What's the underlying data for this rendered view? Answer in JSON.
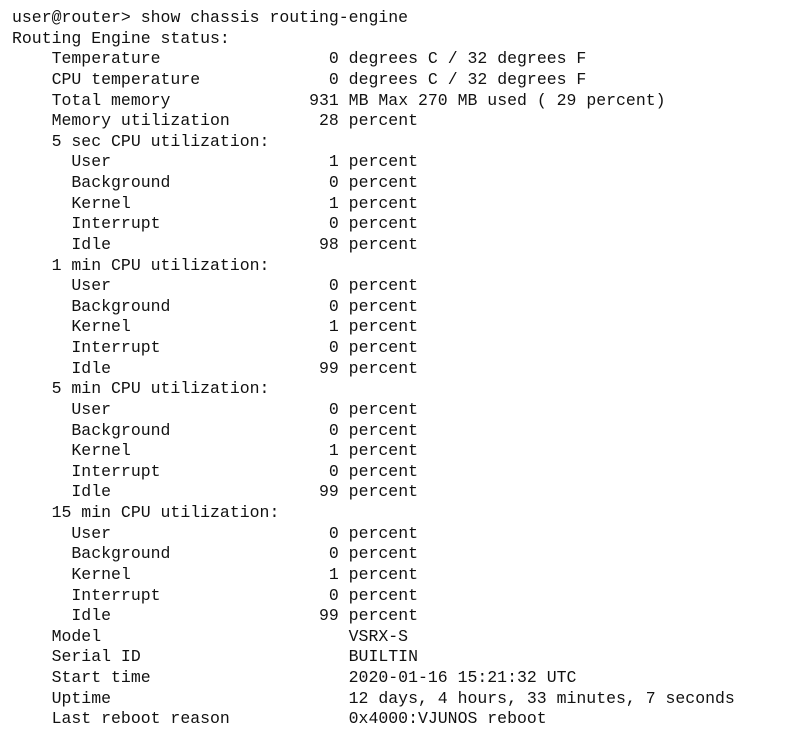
{
  "prompt": {
    "user_host": "user@router>",
    "command": "show chassis routing-engine"
  },
  "header": "Routing Engine status:",
  "indent": {
    "level1_chars": 4,
    "level2_chars": 6,
    "label_width_chars": 30,
    "value_col_start_char": 30,
    "num_field_width_chars": 3
  },
  "rows": [
    {
      "label": "Temperature",
      "level": 1,
      "num": "0",
      "rest": " degrees C / 32 degrees F"
    },
    {
      "label": "CPU temperature",
      "level": 1,
      "num": "0",
      "rest": " degrees C / 32 degrees F"
    },
    {
      "label": "Total memory",
      "level": 1,
      "num": "931",
      "rest": " MB Max 270 MB used ( 29 percent)"
    },
    {
      "label": "Memory utilization",
      "level": 1,
      "num": "28",
      "rest": " percent"
    },
    {
      "label": "5 sec CPU utilization:",
      "level": 1,
      "heading": true
    },
    {
      "label": "User",
      "level": 2,
      "num": "1",
      "rest": " percent"
    },
    {
      "label": "Background",
      "level": 2,
      "num": "0",
      "rest": " percent"
    },
    {
      "label": "Kernel",
      "level": 2,
      "num": "1",
      "rest": " percent"
    },
    {
      "label": "Interrupt",
      "level": 2,
      "num": "0",
      "rest": " percent"
    },
    {
      "label": "Idle",
      "level": 2,
      "num": "98",
      "rest": " percent"
    },
    {
      "label": "1 min CPU utilization:",
      "level": 1,
      "heading": true
    },
    {
      "label": "User",
      "level": 2,
      "num": "0",
      "rest": " percent"
    },
    {
      "label": "Background",
      "level": 2,
      "num": "0",
      "rest": " percent"
    },
    {
      "label": "Kernel",
      "level": 2,
      "num": "1",
      "rest": " percent"
    },
    {
      "label": "Interrupt",
      "level": 2,
      "num": "0",
      "rest": " percent"
    },
    {
      "label": "Idle",
      "level": 2,
      "num": "99",
      "rest": " percent"
    },
    {
      "label": "5 min CPU utilization:",
      "level": 1,
      "heading": true
    },
    {
      "label": "User",
      "level": 2,
      "num": "0",
      "rest": " percent"
    },
    {
      "label": "Background",
      "level": 2,
      "num": "0",
      "rest": " percent"
    },
    {
      "label": "Kernel",
      "level": 2,
      "num": "1",
      "rest": " percent"
    },
    {
      "label": "Interrupt",
      "level": 2,
      "num": "0",
      "rest": " percent"
    },
    {
      "label": "Idle",
      "level": 2,
      "num": "99",
      "rest": " percent"
    },
    {
      "label": "15 min CPU utilization:",
      "level": 1,
      "heading": true
    },
    {
      "label": "User",
      "level": 2,
      "num": "0",
      "rest": " percent"
    },
    {
      "label": "Background",
      "level": 2,
      "num": "0",
      "rest": " percent"
    },
    {
      "label": "Kernel",
      "level": 2,
      "num": "1",
      "rest": " percent"
    },
    {
      "label": "Interrupt",
      "level": 2,
      "num": "0",
      "rest": " percent"
    },
    {
      "label": "Idle",
      "level": 2,
      "num": "99",
      "rest": " percent"
    },
    {
      "label": "Model",
      "level": 1,
      "text": "VSRX-S"
    },
    {
      "label": "Serial ID",
      "level": 1,
      "text": "BUILTIN"
    },
    {
      "label": "Start time",
      "level": 1,
      "text": "2020-01-16 15:21:32 UTC"
    },
    {
      "label": "Uptime",
      "level": 1,
      "text": "12 days, 4 hours, 33 minutes, 7 seconds"
    },
    {
      "label": "Last reboot reason",
      "level": 1,
      "text": "0x4000:VJUNOS reboot"
    }
  ],
  "colors": {
    "background": "#ffffff",
    "text": "#111111"
  },
  "font": {
    "family": "Courier New, monospace",
    "size_pt": 12
  }
}
